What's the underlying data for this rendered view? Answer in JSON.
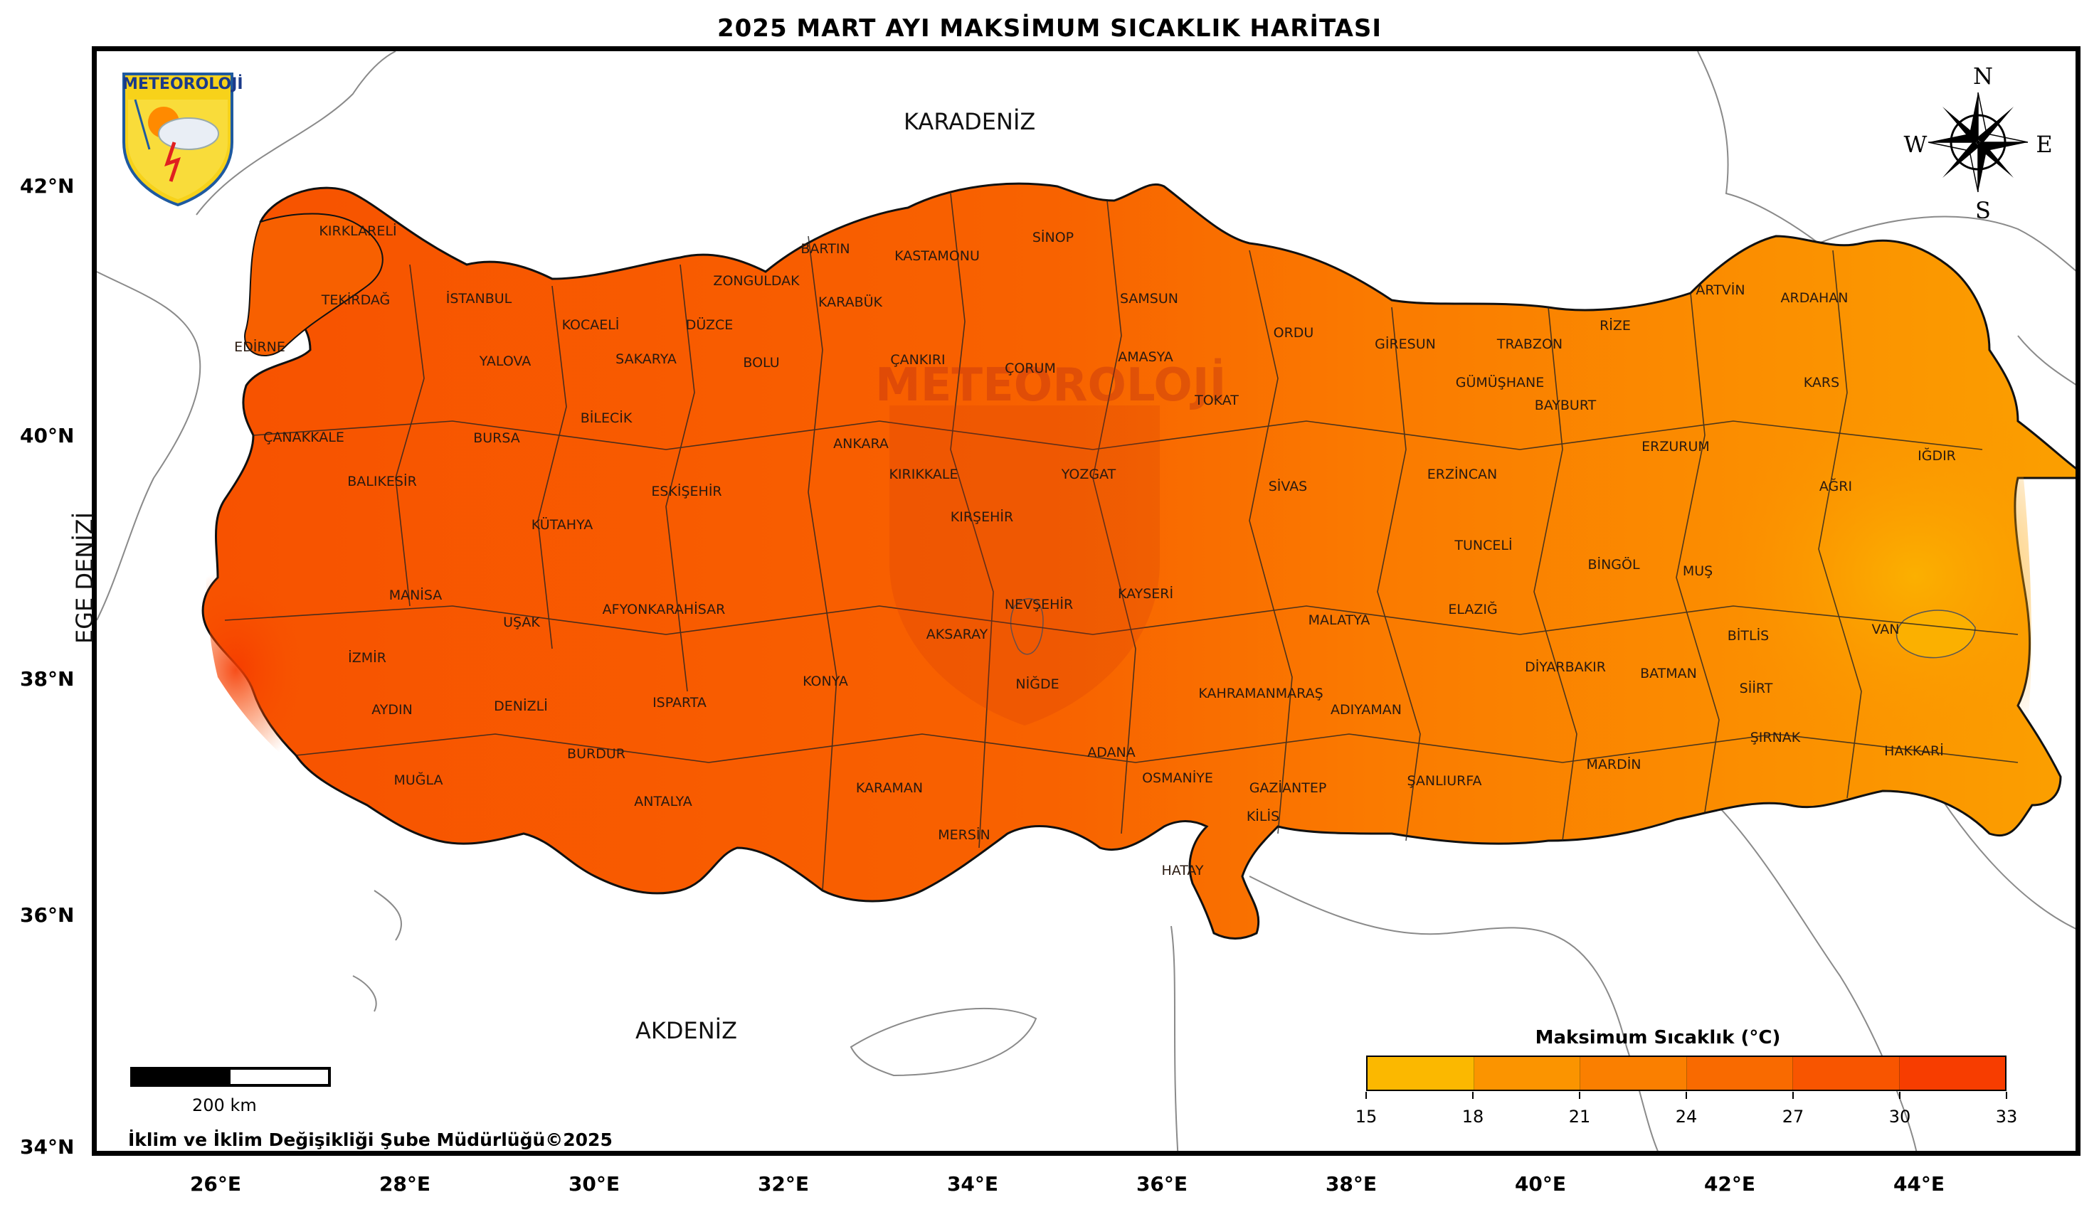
{
  "title": "2025 MART AYI MAKSİMUM SICAKLIK HARİTASI",
  "latitude_labels": [
    "42°N",
    "40°N",
    "38°N",
    "36°N",
    "34°N"
  ],
  "longitude_labels": [
    "26°E",
    "28°E",
    "30°E",
    "32°E",
    "34°E",
    "36°E",
    "38°E",
    "40°E",
    "42°E",
    "44°E"
  ],
  "seas": {
    "north": "KARADENİZ",
    "west": "EGE DENİZİ",
    "south": "AKDENİZ"
  },
  "provinces": [
    "KIRKLARELİ",
    "EDİRNE",
    "TEKİRDAĞ",
    "İSTANBUL",
    "KOCAELİ",
    "YALOVA",
    "SAKARYA",
    "DÜZCE",
    "ZONGULDAK",
    "BARTIN",
    "KASTAMONU",
    "SİNOP",
    "KARABÜK",
    "BOLU",
    "ÇANKIRI",
    "ÇORUM",
    "SAMSUN",
    "AMASYA",
    "ORDU",
    "GİRESUN",
    "TRABZON",
    "RİZE",
    "ARTVİN",
    "ARDAHAN",
    "KARS",
    "IĞDIR",
    "AĞRI",
    "ERZURUM",
    "BAYBURT",
    "GÜMÜŞHANE",
    "TOKAT",
    "SİVAS",
    "ERZİNCAN",
    "TUNCELİ",
    "BİNGÖL",
    "MUŞ",
    "BİTLİS",
    "VAN",
    "HAKKARİ",
    "ŞIRNAK",
    "SİİRT",
    "BATMAN",
    "DİYARBAKIR",
    "MARDİN",
    "ŞANLIURFA",
    "ADIYAMAN",
    "MALATYA",
    "ELAZIĞ",
    "KAHRAMANMARAŞ",
    "GAZİANTEP",
    "KİLİS",
    "HATAY",
    "OSMANİYE",
    "ADANA",
    "MERSİN",
    "KARAMAN",
    "NİĞDE",
    "KAYSERİ",
    "NEVŞEHİR",
    "AKSARAY",
    "KIRŞEHİR",
    "KIRIKKALE",
    "YOZGAT",
    "ANKARA",
    "KONYA",
    "ANTALYA",
    "ISPARTA",
    "BURDUR",
    "AFYONKARAHİSAR",
    "ESKİŞEHİR",
    "BİLECİK",
    "BURSA",
    "BALIKESİR",
    "ÇANAKKALE",
    "KÜTAHYA",
    "UŞAK",
    "MANİSA",
    "İZMİR",
    "AYDIN",
    "DENİZLİ",
    "MUĞLA"
  ],
  "legend": {
    "title": "Maksimum Sıcaklık (°C)",
    "ticks": [
      "15",
      "18",
      "21",
      "24",
      "27",
      "30",
      "33"
    ],
    "colors": [
      "#fbb800",
      "#fb9400",
      "#fa7f00",
      "#f96a00",
      "#f85500",
      "#f73d00"
    ]
  },
  "scale_bar_label": "200 km",
  "credit": "İklim ve İklim Değişikliği Şube Müdürlüğü©2025",
  "logo_text": "METEOROLOJİ",
  "compass": {
    "north": "N",
    "south": "S",
    "east": "E",
    "west": "W"
  },
  "watermark_text": "METEOROLOJİ"
}
